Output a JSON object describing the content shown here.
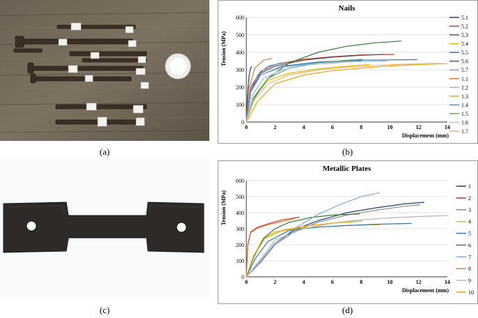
{
  "captions": {
    "a": "(a)",
    "b": "(b)",
    "c": "(c)",
    "d": "(d)"
  },
  "labels": {
    "nails_tags": [
      "",
      "",
      "",
      "",
      "",
      "",
      "",
      "",
      "",
      "",
      "",
      ""
    ],
    "plate": ""
  },
  "chart_data": [
    {
      "type": "line",
      "title": "Nails",
      "xlabel": "Displacement (mm)",
      "ylabel": "Tension (MPa)",
      "xlim": [
        0,
        14
      ],
      "ylim": [
        0,
        600
      ],
      "xticks": [
        0,
        2,
        4,
        6,
        8,
        10,
        12,
        14
      ],
      "yticks": [
        0,
        100,
        200,
        300,
        400,
        500,
        600
      ],
      "grid": true,
      "legend": "right",
      "series": [
        {
          "name": "5.1",
          "color": "#1f3f73",
          "x": [
            0,
            0.1,
            0.2,
            0.3,
            0.4
          ],
          "y": [
            0,
            180,
            270,
            310,
            320
          ]
        },
        {
          "name": "5.2",
          "color": "#c0392b",
          "x": [
            0,
            0.3,
            1,
            2,
            4,
            6,
            8,
            10.3
          ],
          "y": [
            0,
            200,
            290,
            330,
            360,
            375,
            385,
            388
          ]
        },
        {
          "name": "5.3",
          "color": "#555555",
          "x": [
            0,
            0.3,
            1,
            2,
            4,
            6,
            8,
            9.6
          ],
          "y": [
            0,
            180,
            280,
            320,
            355,
            372,
            383,
            388
          ]
        },
        {
          "name": "5.4",
          "color": "#e6b800",
          "x": [
            0,
            0.5,
            1.5,
            3,
            5,
            7,
            8.6
          ],
          "y": [
            0,
            140,
            240,
            280,
            305,
            320,
            330
          ]
        },
        {
          "name": "5.5",
          "color": "#2e75b6",
          "x": [
            0,
            0.3,
            1,
            2.5,
            5,
            8,
            11.9
          ],
          "y": [
            0,
            170,
            270,
            320,
            345,
            355,
            358
          ]
        },
        {
          "name": "5.6",
          "color": "#2e7d32",
          "x": [
            0,
            0.5,
            1.5,
            3,
            5,
            7,
            9,
            10.8
          ],
          "y": [
            0,
            130,
            250,
            340,
            400,
            435,
            455,
            465
          ]
        },
        {
          "name": "5.7",
          "color": "#7fa7d9",
          "x": [
            0,
            0.3,
            1,
            2.5,
            5,
            8
          ],
          "y": [
            0,
            170,
            270,
            315,
            340,
            350
          ]
        },
        {
          "name": "1.1",
          "color": "#e07b39",
          "x": [
            0,
            0.2,
            0.6,
            1.2,
            1.8
          ],
          "y": [
            0,
            200,
            310,
            355,
            365
          ]
        },
        {
          "name": "1.2",
          "color": "#9fb6d5",
          "x": [
            0,
            0.4,
            1.2,
            2.5,
            4.5,
            7,
            9.8
          ],
          "y": [
            0,
            150,
            250,
            300,
            330,
            345,
            350
          ]
        },
        {
          "name": "1.3",
          "color": "#f0a500",
          "x": [
            0,
            0.8,
            2,
            4,
            6,
            8,
            10,
            12,
            14
          ],
          "y": [
            0,
            120,
            220,
            270,
            295,
            310,
            322,
            330,
            335
          ]
        },
        {
          "name": "1.4",
          "color": "#4a8fd4",
          "x": [
            0,
            0.3,
            0.8,
            1.5,
            2.5
          ],
          "y": [
            0,
            180,
            270,
            320,
            340
          ]
        },
        {
          "name": "1.5",
          "color": "#6aa84f",
          "x": [
            0,
            0.5,
            1.5,
            3,
            5,
            7,
            8.1
          ],
          "y": [
            0,
            140,
            250,
            310,
            340,
            355,
            360
          ]
        },
        {
          "name": "1.6",
          "color": "#a4c2f4",
          "x": [
            0,
            0.4,
            1.2,
            2.5,
            4.5,
            6.5
          ],
          "y": [
            0,
            150,
            250,
            300,
            330,
            340
          ]
        },
        {
          "name": "1.7",
          "color": "#f6b26b",
          "x": [
            0,
            0.5,
            1.5,
            3,
            5,
            7,
            9,
            11,
            13.5
          ],
          "y": [
            0,
            120,
            220,
            270,
            300,
            315,
            325,
            332,
            337
          ]
        }
      ]
    },
    {
      "type": "line",
      "title": "Metallic Plates",
      "xlabel": "Displacement (mm)",
      "ylabel": "Tension  (MPa)",
      "xlim": [
        0,
        14
      ],
      "ylim": [
        0,
        600
      ],
      "xticks": [
        0,
        2,
        4,
        6,
        8,
        10,
        12,
        14
      ],
      "yticks": [
        0,
        100,
        200,
        300,
        400,
        500,
        600
      ],
      "grid": true,
      "legend": "right",
      "series": [
        {
          "name": "1",
          "color": "#1f3f73",
          "x": [
            0,
            1,
            2,
            3.5,
            5,
            7,
            9,
            11,
            12.4
          ],
          "y": [
            0,
            100,
            210,
            300,
            350,
            400,
            430,
            455,
            465
          ]
        },
        {
          "name": "2",
          "color": "#c0392b",
          "x": [
            0,
            0.1,
            0.3,
            0.8,
            1.5,
            2.5,
            3.7
          ],
          "y": [
            0,
            200,
            280,
            310,
            330,
            355,
            372
          ]
        },
        {
          "name": "3",
          "color": "#8c8c8c",
          "x": [
            0,
            1,
            2,
            3.5,
            5,
            7,
            9,
            11,
            12.1
          ],
          "y": [
            0,
            90,
            200,
            290,
            340,
            385,
            415,
            440,
            450
          ]
        },
        {
          "name": "4",
          "color": "#e6b800",
          "x": [
            0,
            0.5,
            1.2,
            2,
            3.5,
            5,
            7,
            9.3
          ],
          "y": [
            0,
            130,
            240,
            280,
            300,
            310,
            320,
            325
          ]
        },
        {
          "name": "5",
          "color": "#2e75b6",
          "x": [
            0,
            0.6,
            1.5,
            3,
            5,
            7,
            9,
            11.5
          ],
          "y": [
            0,
            110,
            220,
            290,
            310,
            320,
            328,
            333
          ]
        },
        {
          "name": "6",
          "color": "#2e7d32",
          "x": [
            0,
            0.5,
            1.2,
            2,
            3,
            4.5,
            6,
            7.9
          ],
          "y": [
            0,
            120,
            240,
            300,
            340,
            370,
            385,
            392
          ]
        },
        {
          "name": "7",
          "color": "#7fa7d9",
          "x": [
            0,
            1,
            2,
            3.5,
            5,
            6.5,
            8,
            9.3
          ],
          "y": [
            0,
            100,
            210,
            310,
            390,
            450,
            500,
            525
          ]
        },
        {
          "name": "8",
          "color": "#e07b39",
          "x": [
            0,
            0.1,
            0.3,
            0.8,
            1.5,
            2.5,
            3.3
          ],
          "y": [
            0,
            190,
            275,
            305,
            325,
            345,
            360
          ]
        },
        {
          "name": "9",
          "color": "#b4b4b4",
          "x": [
            0,
            1,
            2,
            4,
            6,
            8,
            10,
            12,
            14
          ],
          "y": [
            0,
            110,
            230,
            300,
            335,
            355,
            368,
            376,
            382
          ]
        },
        {
          "name": "10",
          "color": "#f0a500",
          "x": [
            0,
            0.5,
            1.3,
            2.5,
            4,
            6,
            8.1
          ],
          "y": [
            0,
            130,
            240,
            290,
            315,
            335,
            348
          ]
        }
      ]
    }
  ]
}
